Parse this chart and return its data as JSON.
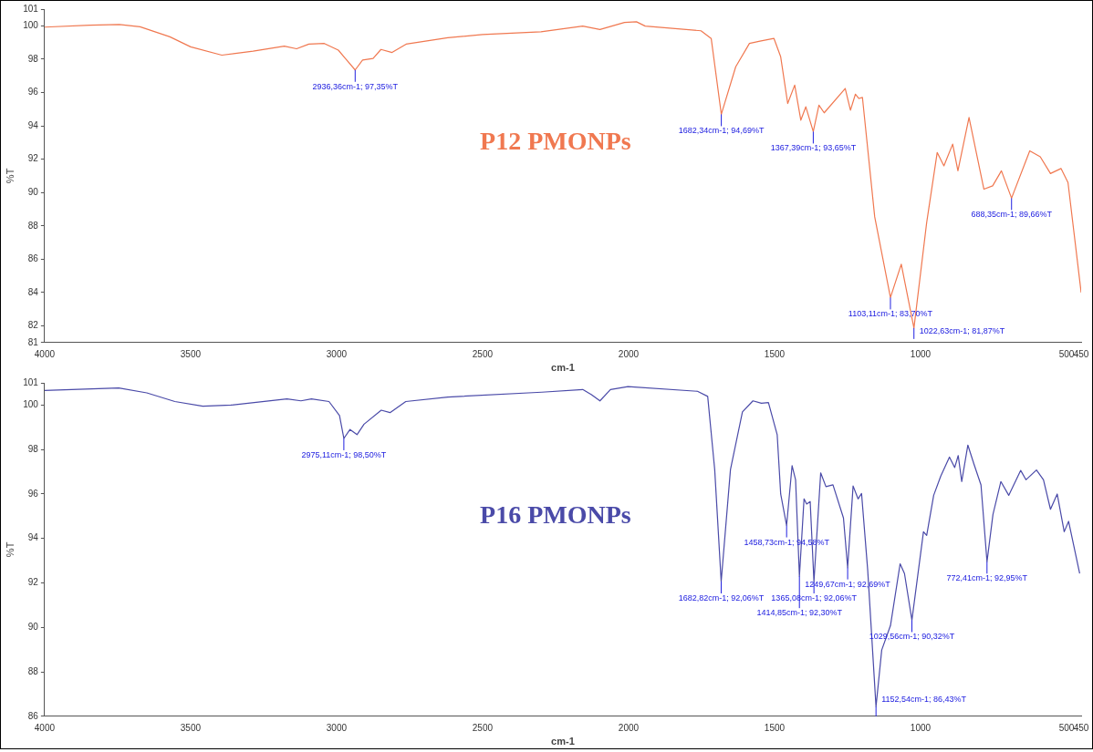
{
  "chart_data": [
    {
      "type": "line",
      "xlabel": "cm-1",
      "ylabel": "%T",
      "xlim": [
        4000,
        450
      ],
      "ylim": [
        81,
        101
      ],
      "xticks": [
        4000,
        3500,
        3000,
        2500,
        2000,
        1500,
        1000,
        500,
        450
      ],
      "yticks": [
        81,
        82,
        84,
        86,
        88,
        90,
        92,
        94,
        96,
        98,
        100,
        101
      ],
      "marker": "none",
      "legend": false,
      "series": [
        {
          "name": "P12 PMONPs",
          "color": "#f07850",
          "x": [
            4000,
            3845,
            3744,
            3673,
            3571,
            3500,
            3393,
            3286,
            3179,
            3137,
            3095,
            3042,
            2994,
            2970,
            2936.36,
            2911,
            2875,
            2848,
            2810,
            2762,
            2619,
            2500,
            2300,
            2157,
            2098,
            2014,
            1973,
            1943,
            1752,
            1717,
            1682.34,
            1633,
            1586,
            1550,
            1502,
            1479,
            1455,
            1431,
            1410,
            1393,
            1367.39,
            1348,
            1330,
            1258,
            1240,
            1223,
            1211,
            1199,
            1157,
            1103.11,
            1066,
            1022.63,
            979,
            943,
            920,
            890,
            872,
            834,
            783,
            753,
            723,
            688.35,
            626,
            590,
            555,
            519,
            495,
            450
          ],
          "values": [
            99.92,
            100.04,
            100.08,
            99.94,
            99.34,
            98.74,
            98.24,
            98.48,
            98.78,
            98.62,
            98.9,
            98.94,
            98.54,
            98.04,
            97.35,
            97.94,
            98.04,
            98.58,
            98.4,
            98.9,
            99.28,
            99.48,
            99.64,
            99.98,
            99.78,
            100.2,
            100.24,
            99.98,
            99.7,
            99.24,
            94.69,
            97.54,
            98.94,
            99.08,
            99.24,
            98.14,
            95.34,
            96.44,
            94.34,
            95.14,
            93.65,
            95.24,
            94.78,
            96.24,
            94.94,
            95.9,
            95.64,
            95.7,
            88.54,
            83.7,
            85.7,
            81.87,
            88.2,
            92.4,
            91.6,
            92.9,
            91.3,
            94.5,
            90.2,
            90.4,
            91.3,
            89.66,
            92.5,
            92.14,
            91.14,
            91.44,
            90.6,
            84.0
          ]
        }
      ],
      "annotations": [
        {
          "text": "2936,36cm-1; 97,35%T",
          "x": 2936.36,
          "y": 97.35
        },
        {
          "text": "1682,34cm-1; 94,69%T",
          "x": 1682.34,
          "y": 94.69
        },
        {
          "text": "1367,39cm-1; 93,65%T",
          "x": 1367.39,
          "y": 93.65
        },
        {
          "text": "1103,11cm-1; 83,70%T",
          "x": 1103.11,
          "y": 83.7
        },
        {
          "text": "1022,63cm-1; 81,87%T",
          "x": 1022.63,
          "y": 81.87
        },
        {
          "text": "688,35cm-1; 89,66%T",
          "x": 688.35,
          "y": 89.66
        }
      ]
    },
    {
      "type": "line",
      "xlabel": "cm-1",
      "ylabel": "%T",
      "xlim": [
        4000,
        450
      ],
      "ylim": [
        86,
        101
      ],
      "xticks": [
        4000,
        3500,
        3000,
        2500,
        2000,
        1500,
        1000,
        500,
        450
      ],
      "yticks": [
        86,
        88,
        90,
        92,
        94,
        96,
        98,
        100,
        101
      ],
      "marker": "none",
      "legend": false,
      "series": [
        {
          "name": "P16 PMONPs",
          "color": "#4a4aa8",
          "x": [
            4000,
            3746,
            3650,
            3554,
            3458,
            3362,
            3170,
            3122,
            3086,
            3026,
            2990,
            2975.11,
            2954,
            2930,
            2906,
            2847,
            2817,
            2763,
            2619,
            2297,
            2157,
            2127,
            2098,
            2062,
            2002,
            1764,
            1729,
            1705,
            1682.82,
            1651,
            1610,
            1574,
            1545,
            1521,
            1491,
            1479,
            1458.73,
            1440,
            1428,
            1414.85,
            1399,
            1390,
            1378,
            1365.08,
            1342,
            1324,
            1300,
            1264,
            1249.67,
            1231,
            1214,
            1202,
            1181,
            1152.54,
            1133,
            1103,
            1070,
            1055,
            1029.56,
            990,
            979,
            955,
            931,
            901,
            883,
            871,
            859,
            838,
            817,
            793,
            772.41,
            752,
            725,
            698,
            657,
            639,
            603,
            579,
            555,
            532,
            508,
            493,
            455
          ],
          "values": [
            100.66,
            100.77,
            100.55,
            100.16,
            99.95,
            100.0,
            100.28,
            100.19,
            100.28,
            100.16,
            99.53,
            98.5,
            98.9,
            98.67,
            99.14,
            99.77,
            99.66,
            100.16,
            100.36,
            100.58,
            100.7,
            100.47,
            100.19,
            100.7,
            100.83,
            100.62,
            100.39,
            97.1,
            92.06,
            97.1,
            99.69,
            100.19,
            100.08,
            100.11,
            98.67,
            96.0,
            94.58,
            97.27,
            96.64,
            92.3,
            95.78,
            95.55,
            95.66,
            92.06,
            96.95,
            96.33,
            96.41,
            94.92,
            92.69,
            96.36,
            95.78,
            96.02,
            92.58,
            86.43,
            88.98,
            90.08,
            92.86,
            92.42,
            90.32,
            94.3,
            94.14,
            95.94,
            96.8,
            97.66,
            97.19,
            97.73,
            96.56,
            98.2,
            97.34,
            96.41,
            92.95,
            95.08,
            96.56,
            95.94,
            97.06,
            96.64,
            97.08,
            96.64,
            95.31,
            96.0,
            94.3,
            94.77,
            92.42
          ]
        }
      ],
      "annotations": [
        {
          "text": "2975,11cm-1; 98,50%T",
          "x": 2975.11,
          "y": 98.5
        },
        {
          "text": "1682,82cm-1; 92,06%T",
          "x": 1682.82,
          "y": 92.06
        },
        {
          "text": "1458,73cm-1; 94,58%T",
          "x": 1458.73,
          "y": 94.58
        },
        {
          "text": "1414,85cm-1; 92,30%T",
          "x": 1414.85,
          "y": 92.3
        },
        {
          "text": "1365,08cm-1; 92,06%T",
          "x": 1365.08,
          "y": 92.06
        },
        {
          "text": "1249,67cm-1; 92,69%T",
          "x": 1249.67,
          "y": 92.69
        },
        {
          "text": "1152,54cm-1; 86,43%T",
          "x": 1152.54,
          "y": 86.43
        },
        {
          "text": "1029,56cm-1; 90,32%T",
          "x": 1029.56,
          "y": 90.32
        },
        {
          "text": "772,41cm-1; 92,95%T",
          "x": 772.41,
          "y": 92.95
        }
      ]
    }
  ]
}
